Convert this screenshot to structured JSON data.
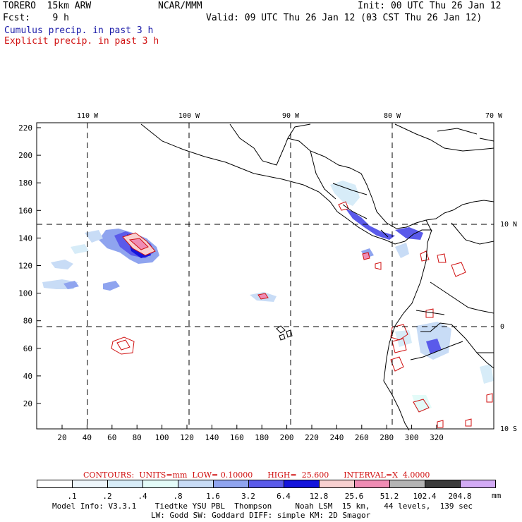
{
  "header": {
    "model": "TORERO  15km ARW",
    "org": "NCAR/MMM",
    "init": "Init: 00 UTC Thu 26 Jan 12",
    "fcst": "Fcst:    9 h",
    "valid": "Valid: 09 UTC Thu 26 Jan 12 (03 CST Thu 26 Jan 12)",
    "field1": "Cumulus precip. in past 3 h",
    "field2": "Explicit precip. in past 3 h",
    "field1_color": "#1a1aa8",
    "field2_color": "#d01010"
  },
  "map": {
    "lon_labels": [
      "110 W",
      "100 W",
      "90 W",
      "80 W",
      "70 W"
    ],
    "lat_labels": [
      "10 N",
      "0",
      "10 S"
    ],
    "x_ticks": [
      "20",
      "40",
      "60",
      "80",
      "100",
      "120",
      "140",
      "160",
      "180",
      "200",
      "220",
      "240",
      "260",
      "280",
      "300",
      "320"
    ],
    "y_ticks": [
      "220",
      "200",
      "180",
      "160",
      "140",
      "120",
      "100",
      "80",
      "60",
      "40",
      "20"
    ]
  },
  "contours_info": {
    "text": "CONTOURS:  UNITS=mm  LOW= 0.10000      HIGH=  25.600      INTERVAL=X  4.0000",
    "color": "#d01010"
  },
  "colorbar": {
    "units": "mm",
    "labels": [
      ".1",
      ".2",
      ".4",
      ".8",
      "1.6",
      "3.2",
      "6.4",
      "12.8",
      "25.6",
      "51.2",
      "102.4",
      "204.8"
    ],
    "colors": [
      "#ffffff",
      "#eef6fb",
      "#d7ecf8",
      "#e3fbf8",
      "#c8dcf6",
      "#8fa4ef",
      "#5a5aea",
      "#1414dc",
      "#f8d0d0",
      "#f08cb4",
      "#b4b4b4",
      "#3c3c3c",
      "#d2aaf5"
    ]
  },
  "footer": {
    "line1": "Model Info: V3.3.1    Tiedtke YSU PBL  Thompson     Noah LSM  15 km,   44 levels,  139 sec",
    "line2": "LW: Godd SW: Goddard DIFF: simple KM: 2D Smagor"
  }
}
